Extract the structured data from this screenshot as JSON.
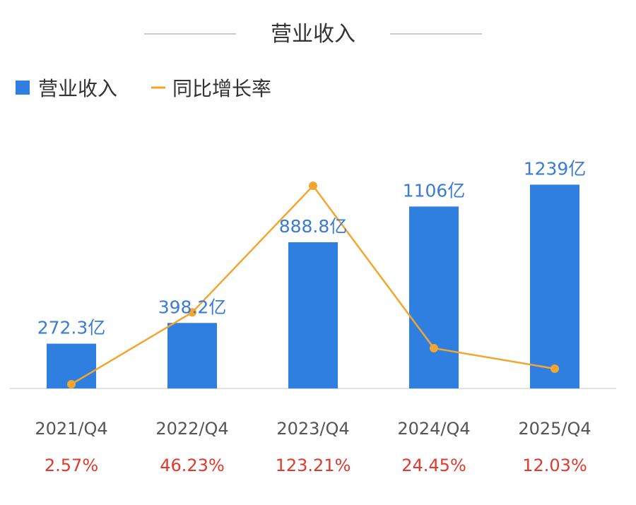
{
  "title": "营业收入",
  "colors": {
    "bar": "#2f7fe0",
    "line": "#f2a630",
    "value_label": "#3a7bd5",
    "pct_label": "#e03a2f",
    "axis": "#e3e3e3",
    "title_rule": "#cccccc"
  },
  "chart_data": {
    "type": "bar",
    "title": "营业收入",
    "legend": {
      "position": "top-left",
      "entries": [
        {
          "name": "营业收入",
          "marker": "square"
        },
        {
          "name": "同比增长率",
          "marker": "line"
        }
      ]
    },
    "categories": [
      "2021/Q4",
      "2022/Q4",
      "2023/Q4",
      "2024/Q4",
      "2025/Q4"
    ],
    "series": [
      {
        "name": "营业收入",
        "type": "bar",
        "values": [
          272.3,
          398.2,
          888.8,
          1106,
          1239
        ],
        "labels": [
          "272.3亿",
          "398.2亿",
          "888.8亿",
          "1106亿",
          "1239亿"
        ]
      },
      {
        "name": "同比增长率",
        "type": "line",
        "values": [
          2.57,
          46.23,
          123.21,
          24.45,
          12.03
        ],
        "labels": [
          "2.57%",
          "46.23%",
          "123.21%",
          "24.45%",
          "12.03%"
        ]
      }
    ],
    "grid": false
  }
}
